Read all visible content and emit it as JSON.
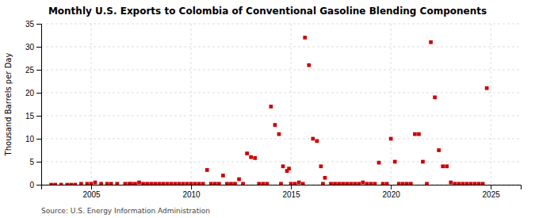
{
  "chart_data": {
    "type": "scatter",
    "title": "Monthly U.S. Exports to Colombia of Conventional Gasoline Blending Components",
    "y_label": "Thousand Barrels per Day",
    "annotations": [
      "Source: U.S. Energy Information Administration"
    ],
    "color": "#cc0000",
    "marker": "square",
    "grid": true,
    "xlim": [
      2002.5,
      2026.5
    ],
    "xticks": [
      2005,
      2010,
      2015,
      2020,
      2025
    ],
    "ylim": [
      0,
      35
    ],
    "yticks": [
      0,
      5,
      10,
      15,
      20,
      25,
      30,
      35
    ],
    "x": [
      2003.0,
      2003.2,
      2003.5,
      2003.8,
      2004.0,
      2004.2,
      2004.5,
      2004.8,
      2005.0,
      2005.2,
      2005.5,
      2005.8,
      2006.0,
      2006.3,
      2006.7,
      2006.9,
      2007.0,
      2007.2,
      2007.4,
      2007.6,
      2007.8,
      2008.0,
      2008.2,
      2008.4,
      2008.6,
      2008.8,
      2009.0,
      2009.2,
      2009.4,
      2009.6,
      2009.8,
      2010.0,
      2010.2,
      2010.4,
      2010.6,
      2010.8,
      2011.0,
      2011.2,
      2011.4,
      2011.6,
      2011.8,
      2012.0,
      2012.2,
      2012.4,
      2012.6,
      2012.8,
      2013.0,
      2013.2,
      2013.4,
      2013.6,
      2013.8,
      2014.0,
      2014.2,
      2014.4,
      2014.5,
      2014.6,
      2014.8,
      2014.9,
      2015.0,
      2015.2,
      2015.4,
      2015.6,
      2015.7,
      2015.9,
      2016.1,
      2016.3,
      2016.5,
      2016.6,
      2016.7,
      2017.0,
      2017.2,
      2017.4,
      2017.6,
      2017.8,
      2018.0,
      2018.2,
      2018.4,
      2018.6,
      2018.8,
      2019.0,
      2019.2,
      2019.4,
      2019.6,
      2019.8,
      2020.0,
      2020.2,
      2020.4,
      2020.6,
      2020.8,
      2021.0,
      2021.2,
      2021.4,
      2021.6,
      2021.8,
      2022.0,
      2022.2,
      2022.4,
      2022.6,
      2022.8,
      2023.0,
      2023.2,
      2023.4,
      2023.6,
      2023.8,
      2024.0,
      2024.2,
      2024.4,
      2024.6,
      2024.8
    ],
    "values": [
      0.0,
      0.0,
      0.0,
      0.0,
      0.0,
      0.0,
      0.2,
      0.2,
      0.2,
      0.5,
      0.2,
      0.2,
      0.2,
      0.2,
      0.2,
      0.2,
      0.2,
      0.2,
      0.5,
      0.2,
      0.2,
      0.2,
      0.2,
      0.2,
      0.2,
      0.2,
      0.2,
      0.2,
      0.2,
      0.2,
      0.2,
      0.2,
      0.2,
      0.2,
      0.2,
      3.2,
      0.2,
      0.2,
      0.2,
      2.0,
      0.2,
      0.2,
      0.2,
      1.2,
      0.2,
      6.8,
      6.0,
      5.8,
      0.2,
      0.2,
      0.2,
      17.0,
      13.0,
      11.0,
      0.2,
      4.0,
      3.0,
      3.5,
      0.2,
      0.2,
      0.5,
      0.2,
      32.0,
      26.0,
      10.0,
      9.5,
      4.0,
      0.2,
      1.5,
      0.2,
      0.2,
      0.2,
      0.2,
      0.2,
      0.2,
      0.2,
      0.2,
      0.5,
      0.2,
      0.2,
      0.2,
      4.8,
      0.2,
      0.2,
      10.0,
      5.0,
      0.2,
      0.2,
      0.2,
      0.2,
      11.0,
      11.0,
      5.0,
      0.2,
      31.0,
      19.0,
      7.5,
      4.0,
      4.0,
      0.5,
      0.2,
      0.2,
      0.2,
      0.2,
      0.2,
      0.2,
      0.2,
      0.2,
      21.0
    ]
  }
}
